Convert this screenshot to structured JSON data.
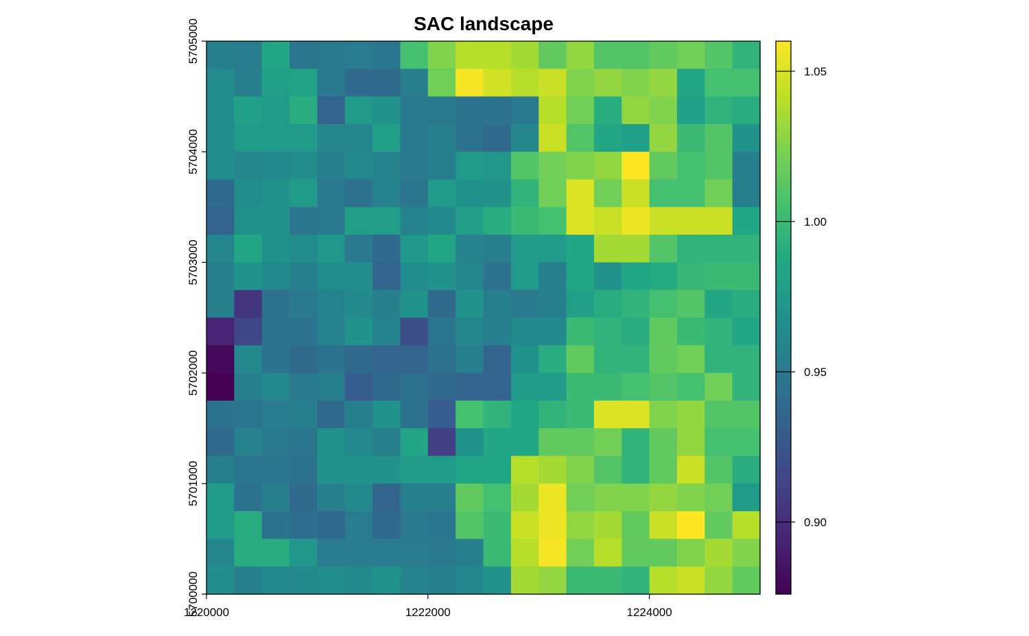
{
  "chart_data": {
    "type": "heatmap",
    "title": "SAC landscape",
    "xlabel": "",
    "ylabel": "",
    "x_range": [
      1220000,
      1225000
    ],
    "y_range": [
      5700000,
      5705000
    ],
    "x_ticks": [
      1220000,
      1222000,
      1224000
    ],
    "x_tick_labels": [
      "1220000",
      "1222000",
      "1224000"
    ],
    "y_ticks": [
      5700000,
      5701000,
      5702000,
      5703000,
      5704000,
      5705000
    ],
    "y_tick_labels": [
      "5700000",
      "5701000",
      "5702000",
      "5703000",
      "5704000",
      "5705000"
    ],
    "cell_size": 250,
    "n_cols": 20,
    "n_rows": 20,
    "value_range": [
      0.876,
      1.06
    ],
    "colormap": "viridis",
    "legend": {
      "placement": "right",
      "ticks": [
        0.9,
        0.95,
        1.0,
        1.05
      ],
      "tick_labels": [
        "0.90",
        "0.95",
        "1.00",
        "1.05"
      ]
    },
    "grid": false,
    "values_row_order": "top-to-bottom",
    "values": [
      [
        0.955,
        0.952,
        0.985,
        0.948,
        0.95,
        0.952,
        0.948,
        1.005,
        1.025,
        1.04,
        1.04,
        1.035,
        1.015,
        1.03,
        1.01,
        1.01,
        1.015,
        1.02,
        1.01,
        0.995
      ],
      [
        0.965,
        0.955,
        0.98,
        0.982,
        0.95,
        0.94,
        0.94,
        0.955,
        1.02,
        1.058,
        1.048,
        1.04,
        1.045,
        1.025,
        1.03,
        1.025,
        1.03,
        0.985,
        1.005,
        1.005
      ],
      [
        0.965,
        0.98,
        0.975,
        0.99,
        0.935,
        0.975,
        0.97,
        0.95,
        0.95,
        0.945,
        0.945,
        0.95,
        1.04,
        1.02,
        0.99,
        1.03,
        1.025,
        0.98,
        0.995,
        0.99
      ],
      [
        0.965,
        0.975,
        0.975,
        0.975,
        0.96,
        0.96,
        0.98,
        0.95,
        0.955,
        0.945,
        0.94,
        0.96,
        1.045,
        1.01,
        0.985,
        0.98,
        1.03,
        1.0,
        1.01,
        0.97
      ],
      [
        0.965,
        0.96,
        0.962,
        0.965,
        0.955,
        0.962,
        0.958,
        0.95,
        0.955,
        0.975,
        0.972,
        1.01,
        1.02,
        1.025,
        1.03,
        1.06,
        1.015,
        1.005,
        1.01,
        0.955
      ],
      [
        0.94,
        0.965,
        0.97,
        0.975,
        0.95,
        0.945,
        0.958,
        0.948,
        0.975,
        0.968,
        0.97,
        0.995,
        1.02,
        1.05,
        1.02,
        1.045,
        1.005,
        1.005,
        1.02,
        0.955
      ],
      [
        0.935,
        0.968,
        0.97,
        0.948,
        0.95,
        0.978,
        0.978,
        0.958,
        0.962,
        0.978,
        0.99,
        1.0,
        1.005,
        1.05,
        1.045,
        1.055,
        1.045,
        1.045,
        1.045,
        0.985
      ],
      [
        0.96,
        0.985,
        0.968,
        0.965,
        0.972,
        0.95,
        0.94,
        0.972,
        0.985,
        0.958,
        0.955,
        0.975,
        0.975,
        0.985,
        1.035,
        1.035,
        1.01,
        0.995,
        0.995,
        0.995
      ],
      [
        0.955,
        0.97,
        0.962,
        0.955,
        0.965,
        0.965,
        0.935,
        0.965,
        0.97,
        0.96,
        0.945,
        0.975,
        0.955,
        0.985,
        0.97,
        0.985,
        0.988,
        0.998,
        1.0,
        1.0
      ],
      [
        0.955,
        0.905,
        0.945,
        0.95,
        0.958,
        0.962,
        0.955,
        0.97,
        0.94,
        0.968,
        0.955,
        0.95,
        0.955,
        0.98,
        0.99,
        0.995,
        1.005,
        1.01,
        0.985,
        0.99
      ],
      [
        0.895,
        0.915,
        0.945,
        0.945,
        0.958,
        0.97,
        0.958,
        0.92,
        0.948,
        0.96,
        0.955,
        0.962,
        0.962,
        1.0,
        0.995,
        0.99,
        1.015,
        1.0,
        0.995,
        0.985
      ],
      [
        0.88,
        0.962,
        0.945,
        0.94,
        0.945,
        0.94,
        0.935,
        0.935,
        0.945,
        0.955,
        0.935,
        0.968,
        0.99,
        1.015,
        0.995,
        0.995,
        1.015,
        1.02,
        0.995,
        0.995
      ],
      [
        0.876,
        0.955,
        0.962,
        0.95,
        0.955,
        0.93,
        0.938,
        0.945,
        0.938,
        0.935,
        0.935,
        0.975,
        0.975,
        1.0,
        1.0,
        1.005,
        1.01,
        1.005,
        1.02,
        0.995
      ],
      [
        0.945,
        0.948,
        0.952,
        0.955,
        0.94,
        0.955,
        0.97,
        0.945,
        0.93,
        1.005,
        0.995,
        0.985,
        0.995,
        1.0,
        1.05,
        1.05,
        1.025,
        1.03,
        1.01,
        1.01
      ],
      [
        0.94,
        0.958,
        0.95,
        0.948,
        0.97,
        0.962,
        0.955,
        0.985,
        0.91,
        0.968,
        0.985,
        0.985,
        1.015,
        1.015,
        1.02,
        0.995,
        1.015,
        1.03,
        1.005,
        1.005
      ],
      [
        0.955,
        0.948,
        0.948,
        0.945,
        0.97,
        0.97,
        0.97,
        0.975,
        0.975,
        0.985,
        0.985,
        1.04,
        1.035,
        1.025,
        1.01,
        0.995,
        1.015,
        1.045,
        1.01,
        0.99
      ],
      [
        0.975,
        0.945,
        0.955,
        0.94,
        0.955,
        0.962,
        0.935,
        0.955,
        0.955,
        1.015,
        1.005,
        1.035,
        1.055,
        1.02,
        1.025,
        1.025,
        1.03,
        1.025,
        1.02,
        0.975
      ],
      [
        0.975,
        0.99,
        0.945,
        0.942,
        0.938,
        0.952,
        0.94,
        0.95,
        0.948,
        1.01,
        1.0,
        1.045,
        1.055,
        1.03,
        1.035,
        1.015,
        1.045,
        1.06,
        1.015,
        1.04
      ],
      [
        0.96,
        0.99,
        0.99,
        0.972,
        0.952,
        0.952,
        0.952,
        0.952,
        0.95,
        0.955,
        1.0,
        1.04,
        1.058,
        1.02,
        1.04,
        1.015,
        1.015,
        1.025,
        1.035,
        1.025
      ],
      [
        0.965,
        0.955,
        0.962,
        0.962,
        0.965,
        0.962,
        0.97,
        0.958,
        0.955,
        0.96,
        0.97,
        1.035,
        1.03,
        1.0,
        1.0,
        0.995,
        1.04,
        1.045,
        1.03,
        1.015
      ]
    ]
  }
}
